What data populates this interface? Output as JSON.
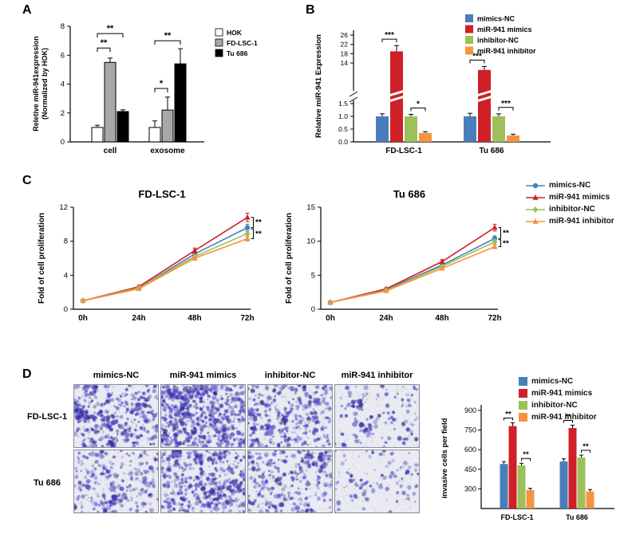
{
  "panels": {
    "a": {
      "label": "A"
    },
    "b": {
      "label": "B"
    },
    "c": {
      "label": "C"
    },
    "d": {
      "label": "D"
    }
  },
  "colors": {
    "mimics_nc": "#4a7ebb",
    "mir941_mimics": "#cf2027",
    "inhibitor_nc": "#9dc05a",
    "mir941_inhibitor": "#f59440",
    "hok_bar": "#ffffff",
    "fd_lsc_1_bar": "#a8a8a8",
    "tu_686_bar": "#000000"
  },
  "chart_data": [
    {
      "panel": "A",
      "type": "bar",
      "ylabel_lines": [
        "Reletive miR-941expression",
        "(Normalized by HOK)"
      ],
      "categories": [
        "cell",
        "exosome"
      ],
      "yticks": [
        0,
        2,
        4,
        6,
        8
      ],
      "ylim": [
        0,
        8
      ],
      "series": [
        {
          "name": "HOK",
          "fill": "#ffffff",
          "values": [
            1.0,
            1.0
          ],
          "errors": [
            0.15,
            0.45
          ]
        },
        {
          "name": "FD-LSC-1",
          "fill": "#a8a8a8",
          "values": [
            5.5,
            2.2
          ],
          "errors": [
            0.3,
            0.9
          ]
        },
        {
          "name": "Tu 686",
          "fill": "#000000",
          "values": [
            2.1,
            5.4
          ],
          "errors": [
            0.12,
            1.05
          ]
        }
      ],
      "significance": [
        {
          "group": 0,
          "from": 0,
          "to": 1,
          "label": "**",
          "height": 6.5
        },
        {
          "group": 0,
          "from": 0,
          "to": 2,
          "label": "**",
          "height": 7.5
        },
        {
          "group": 1,
          "from": 0,
          "to": 1,
          "label": "*",
          "height": 3.7
        },
        {
          "group": 1,
          "from": 0,
          "to": 2,
          "label": "**",
          "height": 7.0
        }
      ]
    },
    {
      "panel": "B",
      "type": "bar-broken-axis",
      "ylabel": "Relative miR-941 Expression",
      "categories": [
        "FD-LSC-1",
        "Tu 686"
      ],
      "yticks_lower": [
        0,
        0.5,
        1,
        1.5
      ],
      "yticks_upper": [
        14,
        18,
        22,
        26
      ],
      "series": [
        {
          "name": "mimics-NC",
          "color": "#4a7ebb",
          "values": [
            1.0,
            1.0
          ],
          "errors": [
            0.1,
            0.12
          ]
        },
        {
          "name": "miR-941 mimics",
          "color": "#cf2027",
          "values": [
            19,
            11
          ],
          "errors": [
            2.5,
            1.5
          ]
        },
        {
          "name": "inhibitor-NC",
          "color": "#9dc05a",
          "values": [
            1.0,
            1.0
          ],
          "errors": [
            0.08,
            0.1
          ]
        },
        {
          "name": "miR-941 inhibitor",
          "color": "#f59440",
          "values": [
            0.35,
            0.25
          ],
          "errors": [
            0.05,
            0.05
          ]
        }
      ],
      "significance": [
        {
          "group": 0,
          "from": 0,
          "to": 1,
          "label": "***"
        },
        {
          "group": 0,
          "from": 2,
          "to": 3,
          "label": "*"
        },
        {
          "group": 1,
          "from": 0,
          "to": 1,
          "label": "***"
        },
        {
          "group": 1,
          "from": 2,
          "to": 3,
          "label": "***"
        }
      ]
    },
    {
      "panel": "C",
      "type": "line",
      "title": "FD-LSC-1",
      "ylabel": "Fold of cell proliferation",
      "x": [
        "0h",
        "24h",
        "48h",
        "72h"
      ],
      "yticks": [
        0,
        4,
        8,
        12
      ],
      "ylim": [
        0,
        12
      ],
      "series": [
        {
          "name": "mimics-NC",
          "color": "#4a7ebb",
          "marker": "circle",
          "values": [
            1,
            2.5,
            6.5,
            9.6
          ],
          "errors": [
            0.05,
            0.15,
            0.3,
            0.4
          ]
        },
        {
          "name": "miR-941 mimics",
          "color": "#cf2027",
          "marker": "triangle",
          "values": [
            1,
            2.65,
            6.9,
            10.8
          ],
          "errors": [
            0.05,
            0.15,
            0.3,
            0.5
          ]
        },
        {
          "name": "inhibitor-NC",
          "color": "#9dc05a",
          "marker": "diamond",
          "values": [
            1,
            2.5,
            6.2,
            8.9
          ],
          "errors": [
            0.05,
            0.1,
            0.25,
            0.35
          ]
        },
        {
          "name": "miR-941 inhibitor",
          "color": "#f59440",
          "marker": "triangle",
          "values": [
            1,
            2.4,
            6.0,
            8.3
          ],
          "errors": [
            0.05,
            0.1,
            0.25,
            0.3
          ]
        }
      ],
      "significance": [
        "**",
        "**"
      ]
    },
    {
      "panel": "C",
      "type": "line",
      "title": "Tu 686",
      "ylabel": "Fold of cell proliferation",
      "x": [
        "0h",
        "24h",
        "48h",
        "72h"
      ],
      "yticks": [
        0,
        5,
        10,
        15
      ],
      "ylim": [
        0,
        15
      ],
      "series": [
        {
          "name": "mimics-NC",
          "color": "#4a7ebb",
          "marker": "circle",
          "values": [
            1,
            2.9,
            6.5,
            10.4
          ],
          "errors": [
            0.05,
            0.15,
            0.3,
            0.4
          ]
        },
        {
          "name": "miR-941 mimics",
          "color": "#cf2027",
          "marker": "triangle",
          "values": [
            1,
            3.0,
            7.0,
            12.0
          ],
          "errors": [
            0.05,
            0.15,
            0.3,
            0.5
          ]
        },
        {
          "name": "inhibitor-NC",
          "color": "#9dc05a",
          "marker": "diamond",
          "values": [
            1,
            2.8,
            6.3,
            9.9
          ],
          "errors": [
            0.05,
            0.1,
            0.25,
            0.35
          ]
        },
        {
          "name": "miR-941 inhibitor",
          "color": "#f59440",
          "marker": "triangle",
          "values": [
            1,
            2.7,
            6.0,
            9.2
          ],
          "errors": [
            0.05,
            0.1,
            0.25,
            0.3
          ]
        }
      ],
      "significance": [
        "**",
        "**"
      ]
    },
    {
      "panel": "D",
      "type": "bar",
      "ylabel": "invasive cells per field",
      "categories": [
        "FD-LSC-1",
        "Tu 686"
      ],
      "yticks": [
        300,
        450,
        600,
        750,
        900
      ],
      "ymin": 150,
      "ymax": 930,
      "series": [
        {
          "name": "mimics-NC",
          "color": "#4a7ebb",
          "values": [
            490,
            510
          ],
          "errors": [
            18,
            20
          ]
        },
        {
          "name": "miR-941 mimics",
          "color": "#cf2027",
          "values": [
            780,
            765
          ],
          "errors": [
            25,
            22
          ]
        },
        {
          "name": "inhibitor-NC",
          "color": "#9dc05a",
          "values": [
            480,
            540
          ],
          "errors": [
            16,
            18
          ]
        },
        {
          "name": "miR-941 inhibitor",
          "color": "#f59440",
          "values": [
            290,
            280
          ],
          "errors": [
            14,
            15
          ]
        }
      ],
      "significance": [
        {
          "group": 0,
          "from": 0,
          "to": 1,
          "label": "**"
        },
        {
          "group": 0,
          "from": 2,
          "to": 3,
          "label": "**"
        },
        {
          "group": 1,
          "from": 0,
          "to": 1,
          "label": "**"
        },
        {
          "group": 1,
          "from": 2,
          "to": 3,
          "label": "**"
        }
      ]
    }
  ],
  "panel_d": {
    "column_headers": [
      "mimics-NC",
      "miR-941 mimics",
      "inhibitor-NC",
      "miR-941 inhibitor"
    ],
    "row_labels": [
      "FD-LSC-1",
      "Tu 686"
    ],
    "images": {
      "densities": [
        [
          380,
          640,
          360,
          130
        ],
        [
          270,
          480,
          300,
          110
        ]
      ],
      "bg": "#eaeaf2",
      "stain_hue": 243
    }
  }
}
